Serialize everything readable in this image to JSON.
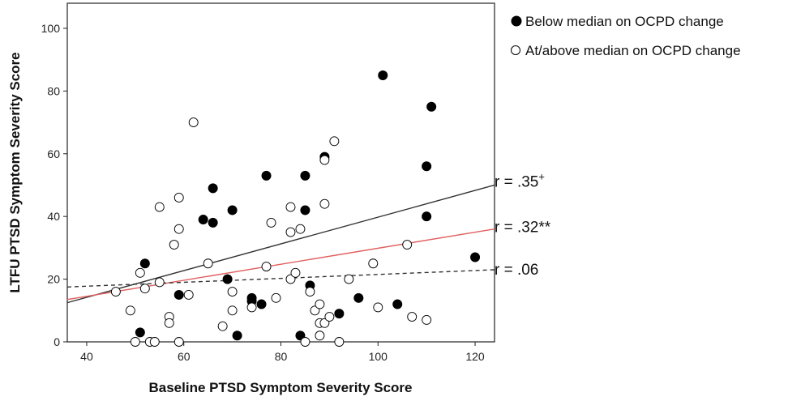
{
  "chart_data": {
    "type": "scatter",
    "title": "",
    "xlabel": "Baseline PTSD Symptom Severity Score",
    "ylabel": "LTFU PTSD Symptom Severity Score",
    "xlim": [
      36,
      124
    ],
    "ylim": [
      0,
      108
    ],
    "xticks": [
      40,
      60,
      80,
      100,
      120
    ],
    "yticks": [
      0,
      20,
      40,
      60,
      80,
      100
    ],
    "grid": false,
    "legend_position": "top-right",
    "series": [
      {
        "name": "Below median on OCPD change",
        "marker": "filled-circle",
        "color": "#000000",
        "points": [
          [
            51,
            3
          ],
          [
            52,
            25
          ],
          [
            59,
            15
          ],
          [
            64,
            39
          ],
          [
            66,
            38
          ],
          [
            66,
            49
          ],
          [
            69,
            20
          ],
          [
            70,
            42
          ],
          [
            71,
            2
          ],
          [
            74,
            14
          ],
          [
            74,
            13
          ],
          [
            76,
            12
          ],
          [
            77,
            53
          ],
          [
            84,
            2
          ],
          [
            85,
            53
          ],
          [
            85,
            42
          ],
          [
            86,
            18
          ],
          [
            89,
            59
          ],
          [
            92,
            9
          ],
          [
            96,
            14
          ],
          [
            101,
            85
          ],
          [
            104,
            12
          ],
          [
            110,
            40
          ],
          [
            110,
            56
          ],
          [
            111,
            75
          ],
          [
            120,
            27
          ]
        ]
      },
      {
        "name": "At/above median on OCPD change",
        "marker": "open-circle",
        "color": "#000000",
        "points": [
          [
            46,
            16
          ],
          [
            49,
            10
          ],
          [
            50,
            0
          ],
          [
            51,
            22
          ],
          [
            52,
            17
          ],
          [
            53,
            0
          ],
          [
            54,
            0
          ],
          [
            55,
            19
          ],
          [
            55,
            43
          ],
          [
            57,
            8
          ],
          [
            57,
            6
          ],
          [
            58,
            31
          ],
          [
            59,
            36
          ],
          [
            59,
            46
          ],
          [
            59,
            0
          ],
          [
            61,
            15
          ],
          [
            62,
            70
          ],
          [
            65,
            25
          ],
          [
            68,
            5
          ],
          [
            70,
            16
          ],
          [
            70,
            10
          ],
          [
            74,
            11
          ],
          [
            77,
            24
          ],
          [
            78,
            38
          ],
          [
            79,
            14
          ],
          [
            82,
            20
          ],
          [
            82,
            35
          ],
          [
            82,
            43
          ],
          [
            83,
            22
          ],
          [
            84,
            36
          ],
          [
            85,
            0
          ],
          [
            86,
            16
          ],
          [
            87,
            10
          ],
          [
            88,
            12
          ],
          [
            88,
            2
          ],
          [
            88,
            6
          ],
          [
            89,
            6
          ],
          [
            89,
            44
          ],
          [
            89,
            58
          ],
          [
            90,
            8
          ],
          [
            91,
            64
          ],
          [
            92,
            0
          ],
          [
            94,
            20
          ],
          [
            99,
            25
          ],
          [
            100,
            11
          ],
          [
            106,
            31
          ],
          [
            107,
            8
          ],
          [
            110,
            7
          ]
        ]
      }
    ],
    "fit_lines": [
      {
        "name": "solid-dark-fit",
        "style": "solid",
        "color": "#333333",
        "x": [
          36,
          124
        ],
        "y": [
          12.5,
          50
        ]
      },
      {
        "name": "solid-red-fit",
        "style": "solid",
        "color": "#e06060",
        "x": [
          36,
          124
        ],
        "y": [
          13.5,
          36
        ]
      },
      {
        "name": "dashed-fit",
        "style": "dashed",
        "color": "#333333",
        "x": [
          36,
          124
        ],
        "y": [
          17.5,
          23
        ]
      }
    ],
    "annotations": [
      {
        "text": "r = .35",
        "superscript": "+",
        "at": [
          125,
          51
        ]
      },
      {
        "text": "r = .32**",
        "superscript": "",
        "at": [
          125,
          36.5
        ]
      },
      {
        "text": "r = .06",
        "superscript": "",
        "at": [
          125,
          23
        ]
      }
    ]
  }
}
